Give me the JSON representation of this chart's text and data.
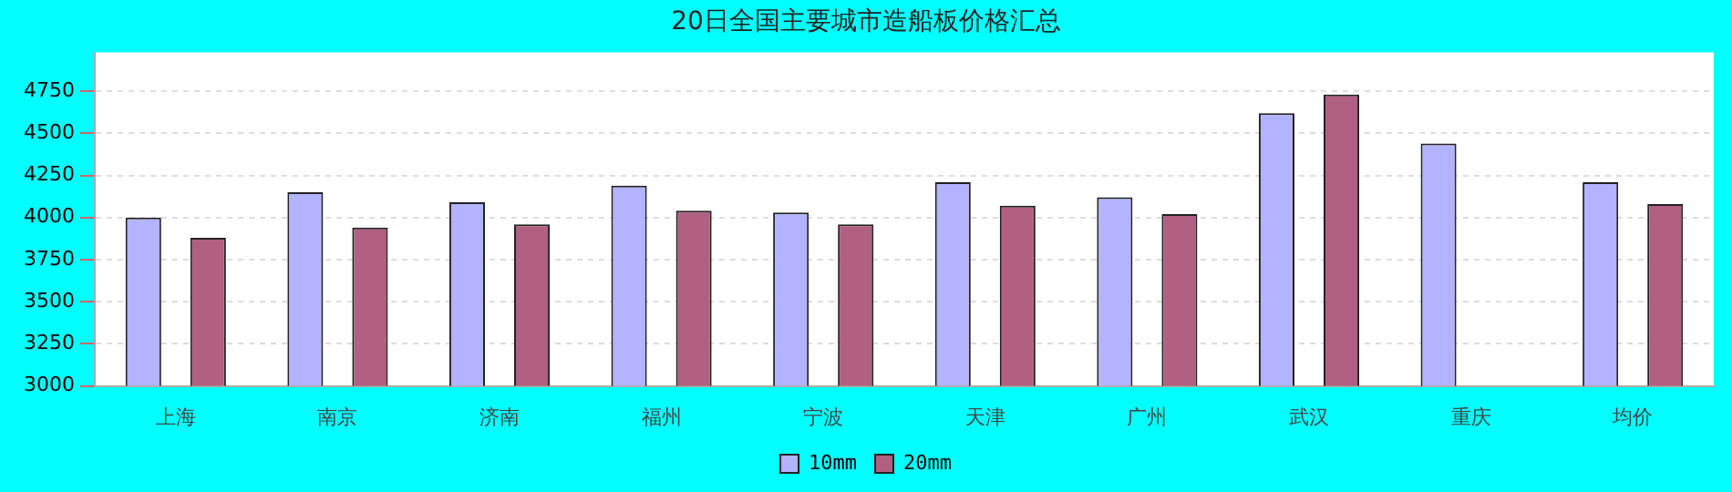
{
  "chart_data": {
    "type": "bar",
    "title": "20日全国主要城市造船板价格汇总",
    "categories": [
      "上海",
      "南京",
      "济南",
      "福州",
      "宁波",
      "天津",
      "广州",
      "武汉",
      "重庆",
      "均价"
    ],
    "series": [
      {
        "name": "10mm",
        "color": "#b3b3ff",
        "values": [
          4000,
          4150,
          4090,
          4190,
          4030,
          4210,
          4120,
          4620,
          4440,
          4210
        ]
      },
      {
        "name": "20mm",
        "color": "#b06080",
        "values": [
          3880,
          3940,
          3960,
          4040,
          3960,
          4070,
          4020,
          4730,
          null,
          4080
        ]
      }
    ],
    "ylim": [
      3000,
      4980
    ],
    "yticks": [
      3000,
      3250,
      3500,
      3750,
      4000,
      4250,
      4500,
      4750
    ],
    "grid": "y",
    "legend": "bottom"
  }
}
